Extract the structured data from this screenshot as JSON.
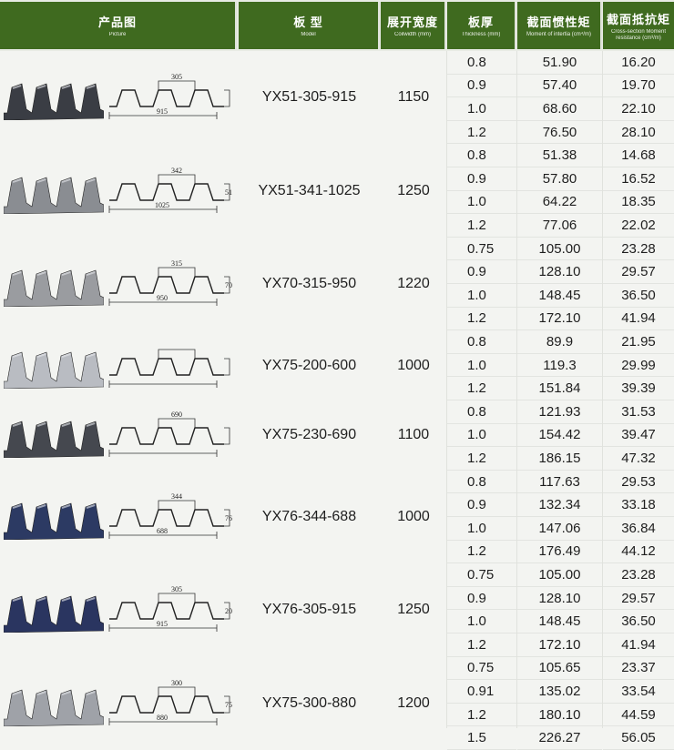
{
  "header": {
    "picture": {
      "zh": "产品图",
      "en": "Picture"
    },
    "model": {
      "zh": "板 型",
      "en": "Model"
    },
    "coilwidth": {
      "zh": "展开宽度",
      "en": "Coilwidth (mm)"
    },
    "thickness": {
      "zh": "板厚",
      "en": "Thickness (mm)"
    },
    "moment": {
      "zh": "截面惯性矩",
      "en": "Moment of intertia (cm⁴/m)"
    },
    "resistance": {
      "zh": "截面抵抗矩",
      "en": "Cross-section Moment resistance (cm³/m)"
    }
  },
  "products": [
    {
      "model": "YX51-305-915",
      "coilwidth": "1150",
      "photo_color": "#3a3d44",
      "dims": [
        "305",
        "915"
      ],
      "rows": [
        [
          "0.8",
          "51.90",
          "16.20"
        ],
        [
          "0.9",
          "57.40",
          "19.70"
        ],
        [
          "1.0",
          "68.60",
          "22.10"
        ],
        [
          "1.2",
          "76.50",
          "28.10"
        ]
      ]
    },
    {
      "model": "YX51-341-1025",
      "coilwidth": "1250",
      "photo_color": "#8a8d92",
      "dims": [
        "342",
        "1025",
        "51"
      ],
      "rows": [
        [
          "0.8",
          "51.38",
          "14.68"
        ],
        [
          "0.9",
          "57.80",
          "16.52"
        ],
        [
          "1.0",
          "64.22",
          "18.35"
        ],
        [
          "1.2",
          "77.06",
          "22.02"
        ]
      ]
    },
    {
      "model": "YX70-315-950",
      "coilwidth": "1220",
      "photo_color": "#9a9ca0",
      "dims": [
        "315",
        "950",
        "70"
      ],
      "rows": [
        [
          "0.75",
          "105.00",
          "23.28"
        ],
        [
          "0.9",
          "128.10",
          "29.57"
        ],
        [
          "1.0",
          "148.45",
          "36.50"
        ],
        [
          "1.2",
          "172.10",
          "41.94"
        ]
      ]
    },
    {
      "model": "YX75-200-600",
      "coilwidth": "1000",
      "photo_color": "#b9bcc2",
      "dims": [],
      "rows": [
        [
          "0.8",
          "89.9",
          "21.95"
        ],
        [
          "1.0",
          "119.3",
          "29.99"
        ],
        [
          "1.2",
          "151.84",
          "39.39"
        ]
      ]
    },
    {
      "model": "YX75-230-690",
      "coilwidth": "1100",
      "photo_color": "#45484f",
      "dims": [
        "690"
      ],
      "rows": [
        [
          "0.8",
          "121.93",
          "31.53"
        ],
        [
          "1.0",
          "154.42",
          "39.47"
        ],
        [
          "1.2",
          "186.15",
          "47.32"
        ]
      ]
    },
    {
      "model": "YX76-344-688",
      "coilwidth": "1000",
      "photo_color": "#2c3a63",
      "dims": [
        "344",
        "688",
        "76"
      ],
      "rows": [
        [
          "0.8",
          "117.63",
          "29.53"
        ],
        [
          "0.9",
          "132.34",
          "33.18"
        ],
        [
          "1.0",
          "147.06",
          "36.84"
        ],
        [
          "1.2",
          "176.49",
          "44.12"
        ]
      ]
    },
    {
      "model": "YX76-305-915",
      "coilwidth": "1250",
      "photo_color": "#2a3560",
      "dims": [
        "305",
        "915",
        "20"
      ],
      "rows": [
        [
          "0.75",
          "105.00",
          "23.28"
        ],
        [
          "0.9",
          "128.10",
          "29.57"
        ],
        [
          "1.0",
          "148.45",
          "36.50"
        ],
        [
          "1.2",
          "172.10",
          "41.94"
        ]
      ]
    },
    {
      "model": "YX75-300-880",
      "coilwidth": "1200",
      "photo_color": "#9fa2a8",
      "dims": [
        "300",
        "880",
        "75"
      ],
      "rows": [
        [
          "0.75",
          "105.65",
          "23.37"
        ],
        [
          "0.91",
          "135.02",
          "33.54"
        ],
        [
          "1.2",
          "180.10",
          "44.59"
        ],
        [
          "1.5",
          "226.27",
          "56.05"
        ]
      ]
    }
  ]
}
